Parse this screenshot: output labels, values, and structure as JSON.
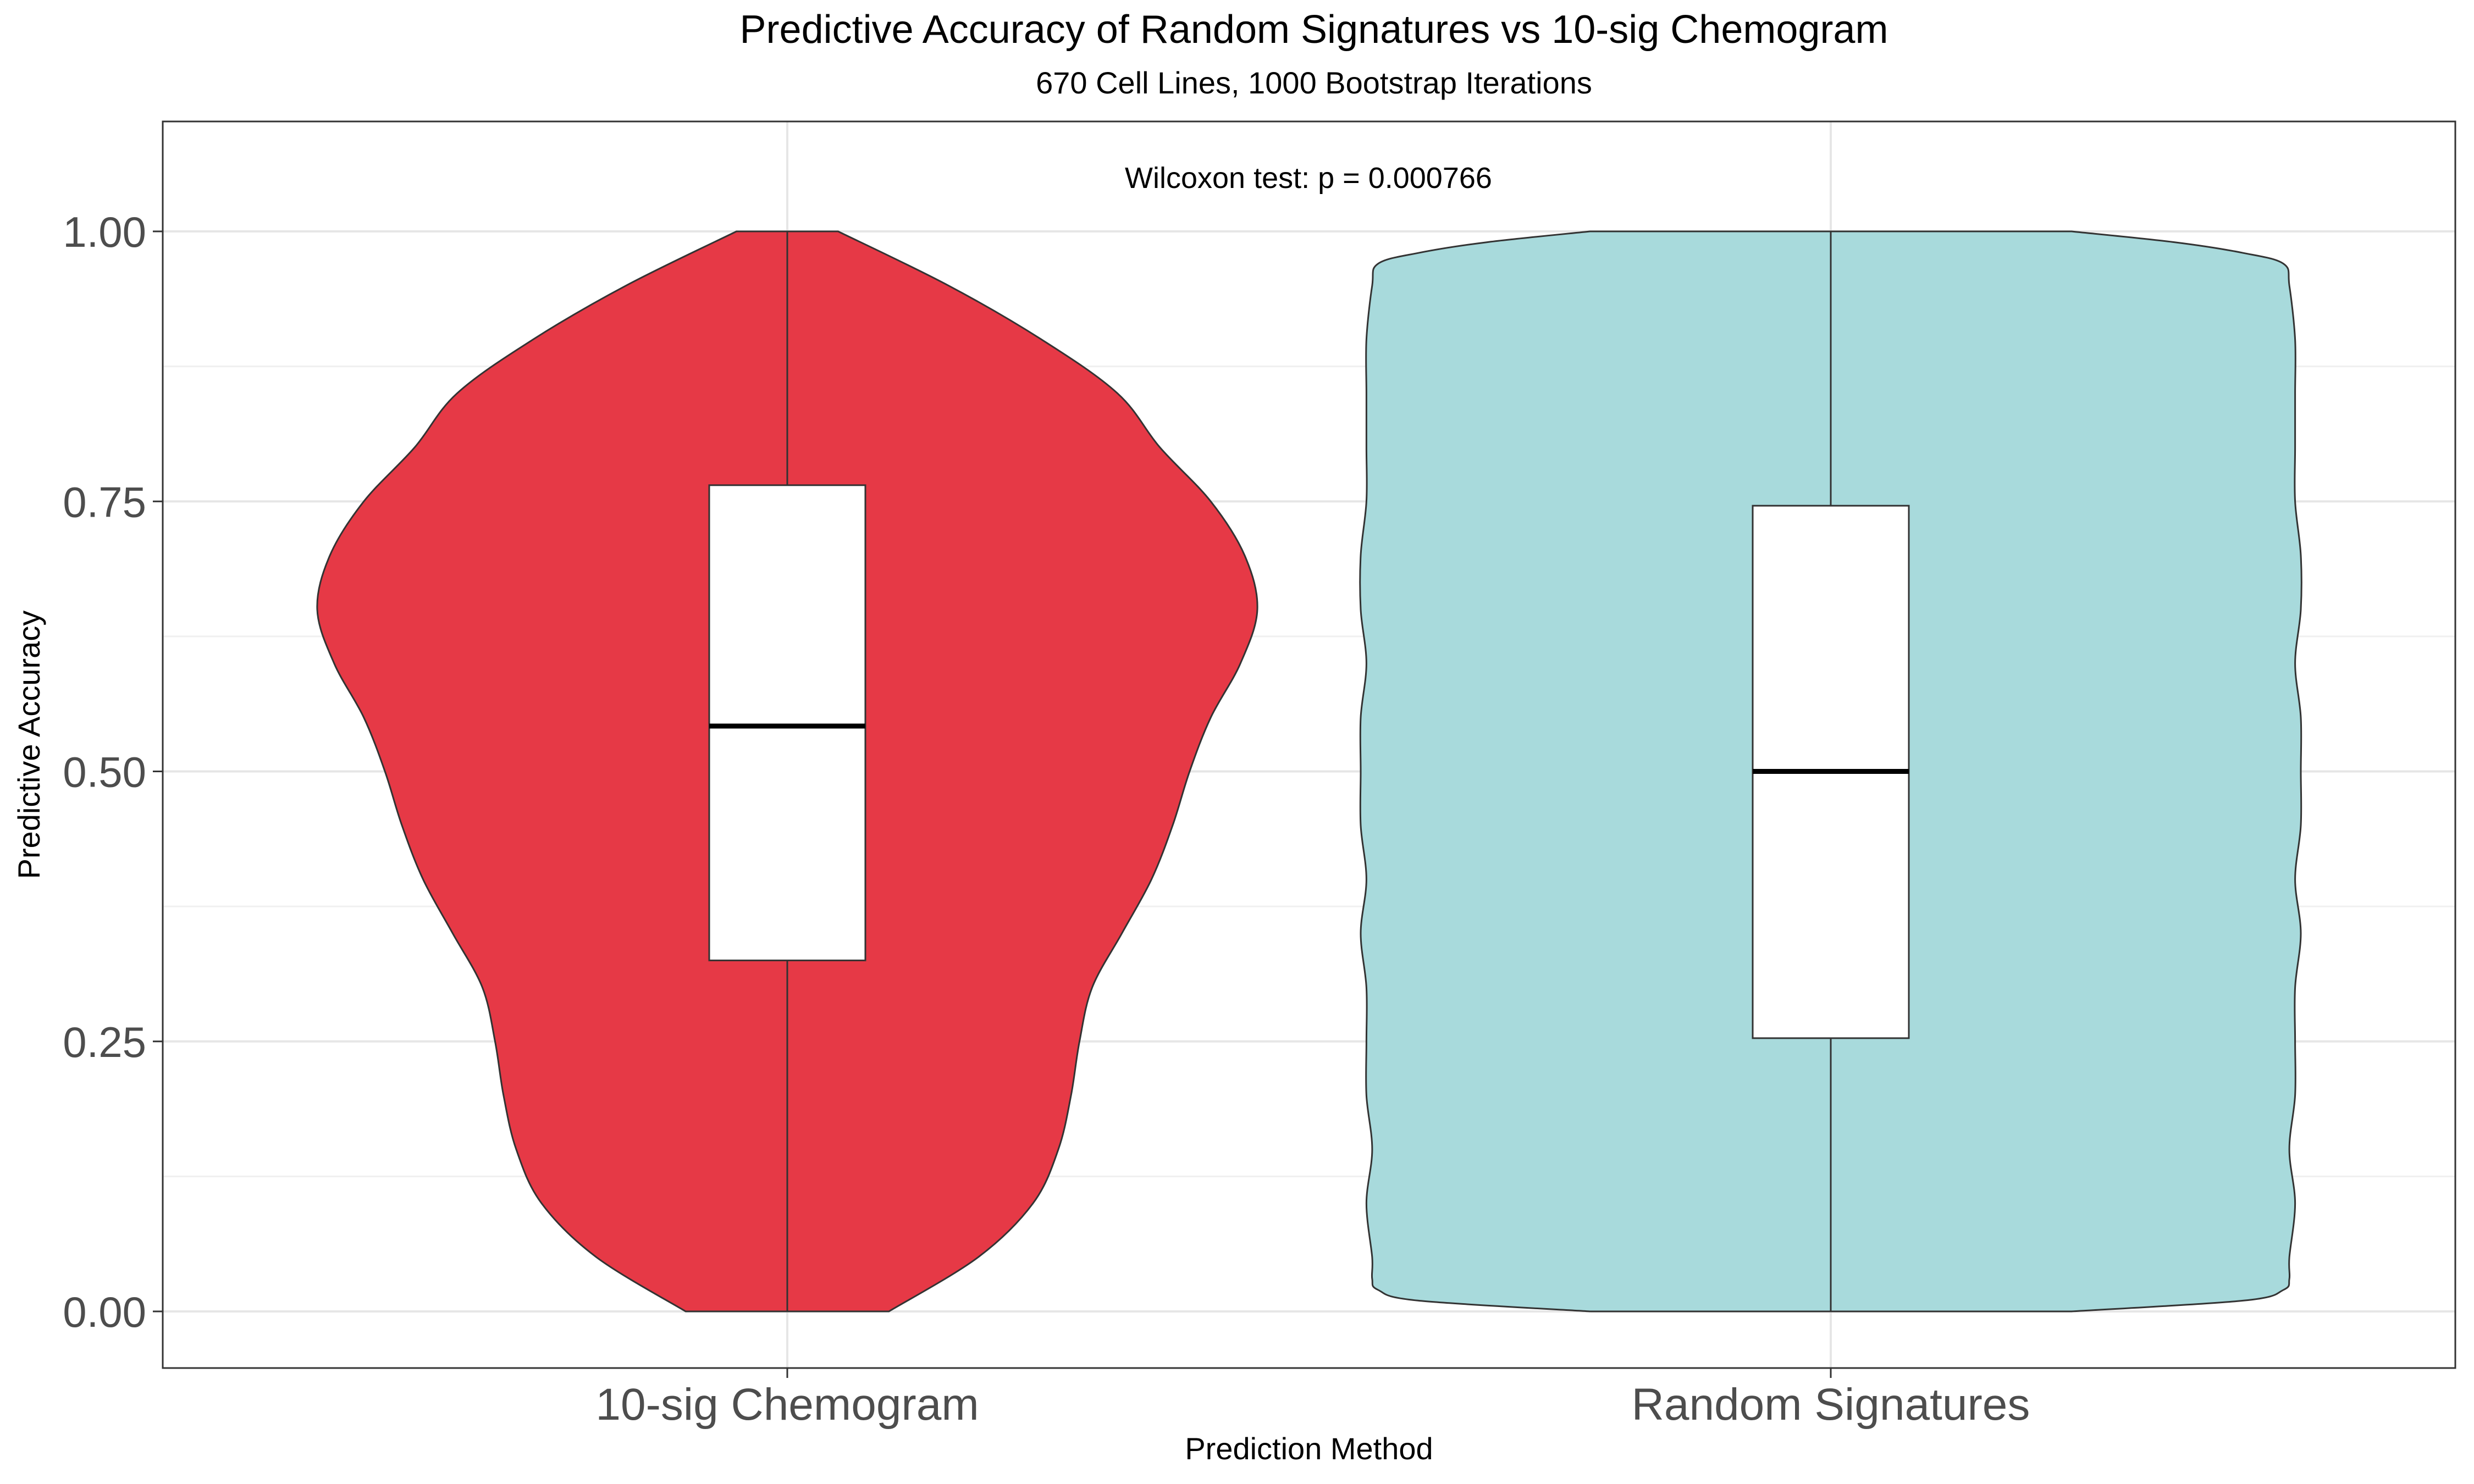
{
  "chart_data": {
    "type": "violin",
    "title": "Predictive Accuracy of Random Signatures vs 10-sig Chemogram",
    "subtitle": "670 Cell Lines, 1000 Bootstrap Iterations",
    "xlabel": "Prediction Method",
    "ylabel": "Predictive Accuracy",
    "annotation": "Wilcoxon test: p = 0.000766",
    "ylim": [
      -0.05,
      1.1
    ],
    "yticks": [
      0.0,
      0.25,
      0.5,
      0.75,
      1.0
    ],
    "ytick_labels": [
      "0.00",
      "0.25",
      "0.50",
      "0.75",
      "1.00"
    ],
    "grid": true,
    "categories": [
      "10-sig Chemogram",
      "Random Signatures"
    ],
    "series": [
      {
        "category": "10-sig Chemogram",
        "color": "#e63946",
        "box": {
          "q1": 0.325,
          "median": 0.542,
          "q3": 0.765,
          "min": 0.0,
          "max": 1.0
        },
        "density_y": [
          0.0,
          0.05,
          0.1,
          0.15,
          0.2,
          0.25,
          0.3,
          0.35,
          0.4,
          0.45,
          0.5,
          0.55,
          0.6,
          0.65,
          0.7,
          0.75,
          0.8,
          0.85,
          0.9,
          0.95,
          1.0
        ],
        "density": [
          0.24,
          0.45,
          0.58,
          0.64,
          0.67,
          0.69,
          0.72,
          0.79,
          0.86,
          0.91,
          0.95,
          1.0,
          1.07,
          1.11,
          1.08,
          1.0,
          0.88,
          0.78,
          0.6,
          0.38,
          0.12
        ]
      },
      {
        "category": "Random Signatures",
        "color": "#a8dadc",
        "box": {
          "q1": 0.253,
          "median": 0.5,
          "q3": 0.746,
          "min": 0.0,
          "max": 1.0
        },
        "density_y": [
          0.0,
          0.01,
          0.02,
          0.03,
          0.05,
          0.1,
          0.15,
          0.2,
          0.25,
          0.3,
          0.35,
          0.4,
          0.45,
          0.5,
          0.55,
          0.6,
          0.65,
          0.7,
          0.75,
          0.8,
          0.85,
          0.9,
          0.95,
          0.97,
          0.98,
          0.99,
          1.0
        ],
        "density": [
          0.42,
          0.72,
          0.79,
          0.8,
          0.8,
          0.81,
          0.8,
          0.81,
          0.81,
          0.81,
          0.82,
          0.81,
          0.82,
          0.82,
          0.82,
          0.81,
          0.82,
          0.82,
          0.81,
          0.81,
          0.81,
          0.81,
          0.8,
          0.79,
          0.72,
          0.6,
          0.42
        ]
      }
    ]
  }
}
